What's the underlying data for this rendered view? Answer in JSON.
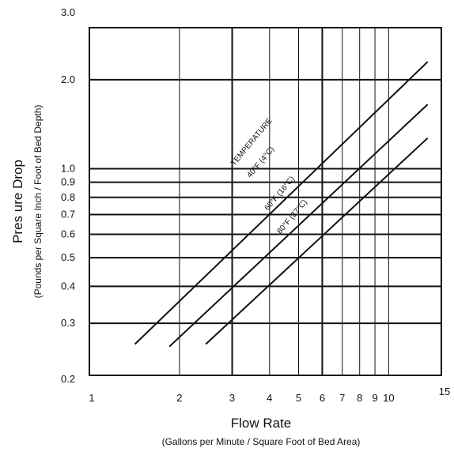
{
  "chart_data": {
    "type": "line",
    "xscale": "log",
    "yscale": "log",
    "xlim": [
      1,
      15
    ],
    "ylim": [
      0.2,
      3.0
    ],
    "x_ticks": [
      {
        "value": 1,
        "label": "1"
      },
      {
        "value": 2,
        "label": "2"
      },
      {
        "value": 3,
        "label": "3"
      },
      {
        "value": 4,
        "label": "4"
      },
      {
        "value": 5,
        "label": "5"
      },
      {
        "value": 6,
        "label": "6"
      },
      {
        "value": 7,
        "label": "7"
      },
      {
        "value": 8,
        "label": "8"
      },
      {
        "value": 9,
        "label": "9"
      },
      {
        "value": 10,
        "label": "10"
      },
      {
        "value": 15,
        "label": "15"
      }
    ],
    "x_heavy_gridlines": [
      3,
      6
    ],
    "y_ticks": [
      {
        "value": 0.2,
        "label": "0.2"
      },
      {
        "value": 0.3,
        "label": "0.3"
      },
      {
        "value": 0.4,
        "label": "0.4"
      },
      {
        "value": 0.5,
        "label": "0.5"
      },
      {
        "value": 0.6,
        "label": "0.6"
      },
      {
        "value": 0.7,
        "label": "0.7"
      },
      {
        "value": 0.8,
        "label": "0.8"
      },
      {
        "value": 0.9,
        "label": "0.9"
      },
      {
        "value": 1.0,
        "label": "1.0"
      },
      {
        "value": 2.0,
        "label": "2.0"
      },
      {
        "value": 3.0,
        "label": "3.0"
      }
    ],
    "xlabel": "Flow Rate",
    "xlabel_sub": "(Gallons per Minute / Square Foot of Bed Area)",
    "ylabel": "Pres ure Drop",
    "ylabel_sub": "(Pounds per Square Inch / Foot of Bed Depth)",
    "grid": true,
    "series": [
      {
        "name": "40°F (4°C)",
        "x": [
          1.42,
          13.5
        ],
        "y": [
          0.255,
          2.3
        ]
      },
      {
        "name": "60°F (16°C)",
        "x": [
          1.85,
          13.5
        ],
        "y": [
          0.25,
          1.65
        ]
      },
      {
        "name": "80°F (27°C)",
        "x": [
          2.45,
          13.5
        ],
        "y": [
          0.255,
          1.27
        ]
      }
    ],
    "annotations": [
      {
        "text": "TEMPERATURE",
        "x": 3.05,
        "y": 1.02
      },
      {
        "text": "40°F (4°C)",
        "x": 3.45,
        "y": 0.93
      },
      {
        "text": "60°F (16°C)",
        "x": 3.95,
        "y": 0.72
      },
      {
        "text": "80°F (27°C)",
        "x": 4.35,
        "y": 0.6
      }
    ]
  }
}
